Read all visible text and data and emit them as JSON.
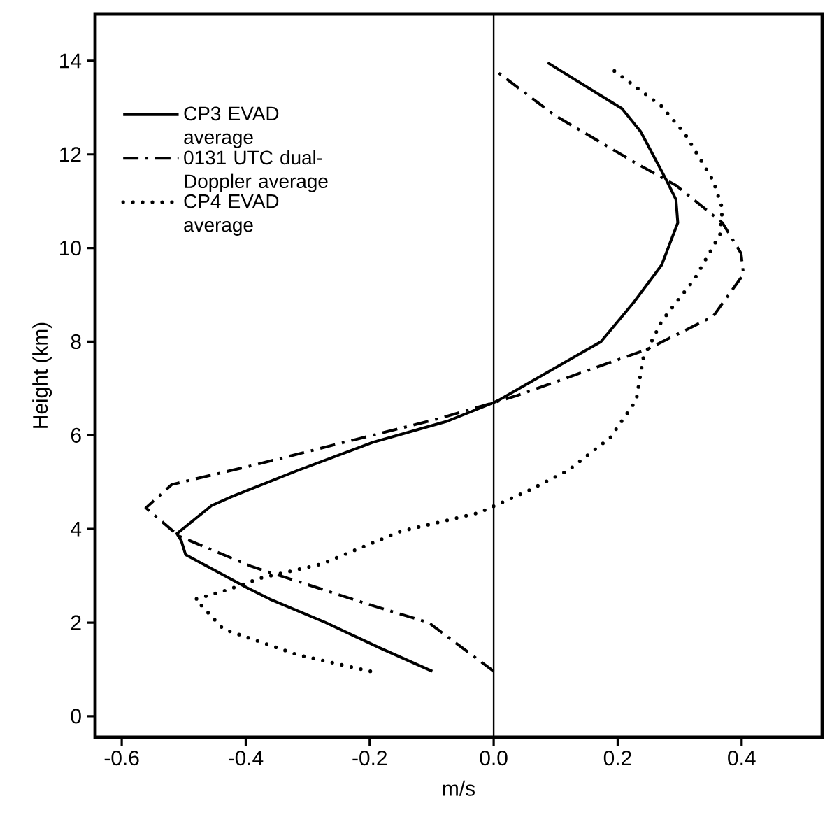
{
  "chart_data": {
    "type": "line",
    "xlabel": "m/s",
    "ylabel": "Height (km)",
    "xlim": [
      -0.643,
      0.53
    ],
    "ylim": [
      -0.45,
      15.0
    ],
    "xticks": [
      -0.6,
      -0.4,
      -0.2,
      {
        "value": 0,
        "label": "0.0"
      },
      0.2,
      0.4
    ],
    "yticks": [
      0,
      2,
      4,
      6,
      8,
      10,
      12,
      14
    ],
    "legend": "top left",
    "grid": false,
    "ref_lines": [
      {
        "axis": "x",
        "value": 0,
        "color": "#000000",
        "line_style": "solid"
      }
    ],
    "series": [
      {
        "name": "CP3 EVAD average",
        "color": "#000000",
        "line_style": "solid",
        "x": [
          -0.099,
          -0.184,
          -0.271,
          -0.361,
          -0.399,
          -0.497,
          -0.504,
          -0.511,
          -0.455,
          -0.421,
          -0.316,
          -0.195,
          -0.075,
          0.0,
          0.008,
          0.173,
          0.226,
          0.271,
          0.297,
          0.294,
          0.279,
          0.237,
          0.207,
          0.087
        ],
        "values": [
          0.96,
          1.46,
          2.0,
          2.5,
          2.75,
          3.45,
          3.75,
          3.9,
          4.5,
          4.7,
          5.25,
          5.85,
          6.3,
          6.7,
          6.75,
          8.0,
          8.84,
          9.64,
          10.54,
          11.04,
          11.44,
          12.49,
          12.98,
          13.96
        ]
      },
      {
        "name": "0131 UTC dual-Doppler average",
        "color": "#000000",
        "line_style": "dashdot",
        "x": [
          0.0,
          -0.105,
          -0.195,
          -0.391,
          -0.508,
          -0.561,
          -0.519,
          -0.391,
          -0.241,
          -0.09,
          0.0,
          0.038,
          0.248,
          0.354,
          0.403,
          0.399,
          0.369,
          0.294,
          0.226,
          0.098,
          0.004
        ],
        "values": [
          0.96,
          2.0,
          2.36,
          3.2,
          3.85,
          4.45,
          4.95,
          5.35,
          5.85,
          6.35,
          6.7,
          6.85,
          7.84,
          8.54,
          9.44,
          9.89,
          10.54,
          11.34,
          11.84,
          12.84,
          13.78
        ]
      },
      {
        "name": "CP4 EVAD average",
        "color": "#000000",
        "line_style": "dotted",
        "x": [
          -0.199,
          -0.316,
          -0.436,
          -0.481,
          -0.429,
          -0.376,
          -0.278,
          -0.15,
          -0.023,
          0.053,
          0.12,
          0.188,
          0.23,
          0.241,
          0.271,
          0.324,
          0.365,
          0.369,
          0.354,
          0.309,
          0.271,
          0.188
        ],
        "values": [
          0.96,
          1.31,
          1.86,
          2.5,
          2.7,
          2.95,
          3.25,
          3.95,
          4.35,
          4.8,
          5.25,
          5.95,
          6.75,
          7.64,
          8.44,
          9.34,
          10.29,
          10.84,
          11.44,
          12.43,
          13.03,
          13.85
        ]
      }
    ]
  }
}
